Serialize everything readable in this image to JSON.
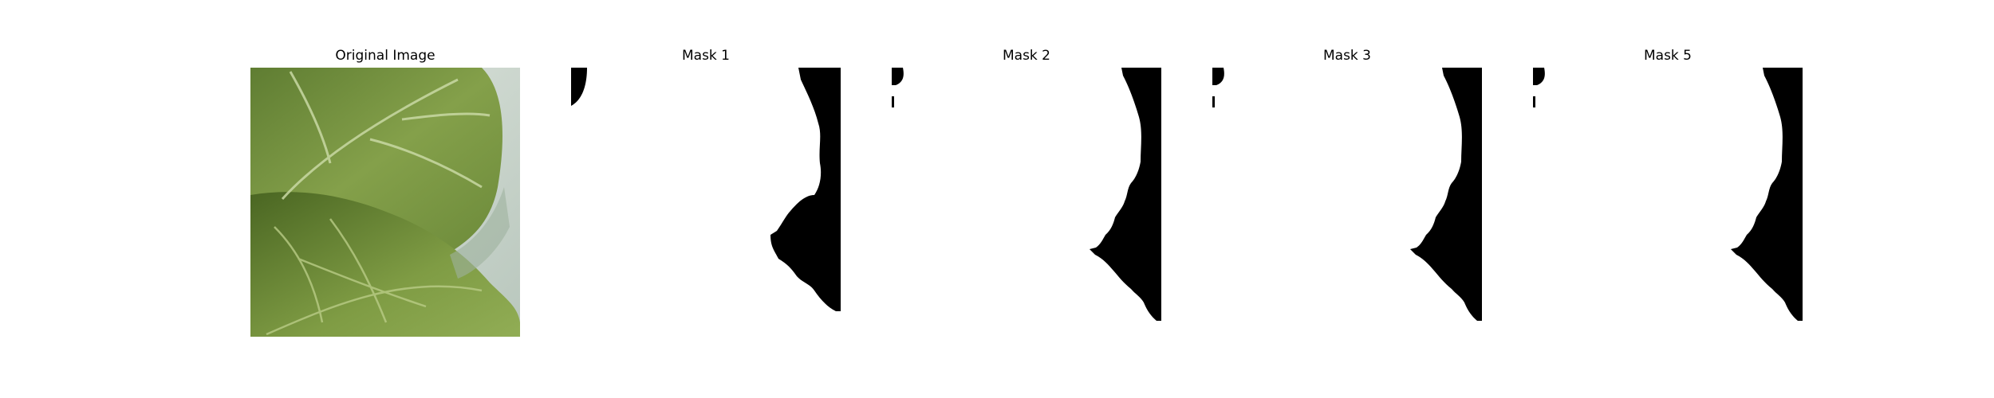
{
  "panels": [
    {
      "title": "Original Image",
      "kind": "photo"
    },
    {
      "title": "Mask 1",
      "kind": "mask"
    },
    {
      "title": "Mask 2",
      "kind": "mask"
    },
    {
      "title": "Mask 3",
      "kind": "mask"
    },
    {
      "title": "Mask 5",
      "kind": "mask"
    }
  ],
  "colors": {
    "background": "#ffffff",
    "mask_foreground": "#000000",
    "mask_background": "#ffffff",
    "leaf_dark": "#4f6b27",
    "leaf_light": "#8aa24a",
    "photo_backdrop": "#c9d3cb"
  }
}
